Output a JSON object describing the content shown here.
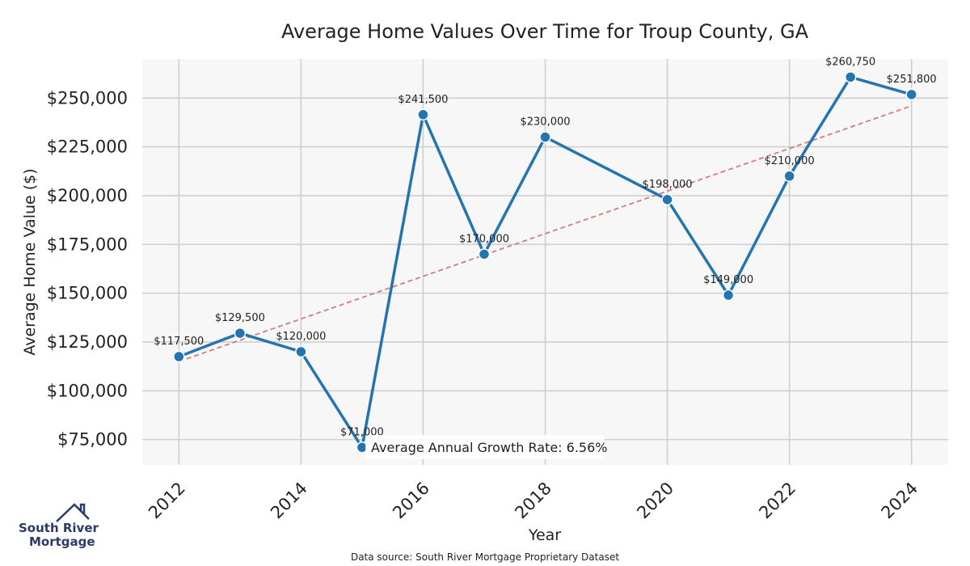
{
  "chart_data": {
    "type": "line",
    "title": "Average Home Values Over Time for Troup County, GA",
    "xlabel": "Year",
    "ylabel": "Average Home Value ($)",
    "x": [
      2012,
      2013,
      2014,
      2015,
      2016,
      2017,
      2018,
      2020,
      2021,
      2022,
      2023,
      2024
    ],
    "series": [
      {
        "name": "Average Home Value",
        "values": [
          117500,
          129500,
          120000,
          71000,
          241500,
          170000,
          230000,
          198000,
          149000,
          210000,
          260750,
          251800
        ],
        "labels": [
          "$117,500",
          "$129,500",
          "$120,000",
          "$71,000",
          "$241,500",
          "$170,000",
          "$230,000",
          "$198,000",
          "$149,000",
          "$210,000",
          "$260,750",
          "$251,800"
        ]
      }
    ],
    "trendline": {
      "name": "Trend",
      "start": [
        2012,
        115000
      ],
      "end": [
        2024,
        246000
      ]
    },
    "xticks": [
      2012,
      2014,
      2016,
      2018,
      2020,
      2022,
      2024
    ],
    "xtick_labels": [
      "2012",
      "2014",
      "2016",
      "2018",
      "2020",
      "2022",
      "2024"
    ],
    "yticks": [
      75000,
      100000,
      125000,
      150000,
      175000,
      200000,
      225000,
      250000
    ],
    "ytick_labels": [
      "$75,000",
      "$100,000",
      "$125,000",
      "$150,000",
      "$175,000",
      "$200,000",
      "$225,000",
      "$250,000"
    ],
    "xlim": [
      2011.4,
      2024.6
    ],
    "ylim": [
      62000,
      270000
    ],
    "grid": true,
    "annotation": "Average Annual Growth Rate: 6.56%",
    "colors": {
      "line": "#2474b0",
      "trend": "#d47b7b",
      "plot_bg": "#f7f7f7",
      "grid": "#cfcfcf"
    }
  },
  "source_note": "Data source: South River Mortgage Proprietary Dataset",
  "logo": {
    "line1": "South River",
    "line2": "Mortgage",
    "color": "#2b3a67"
  }
}
